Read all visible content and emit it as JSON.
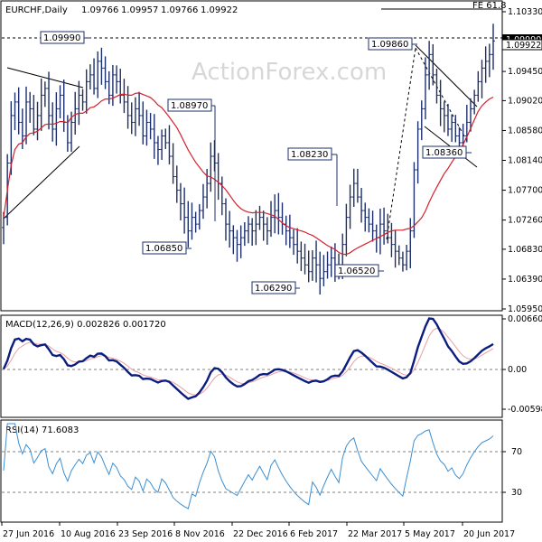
{
  "header": {
    "symbol": "EURCHF,Daily",
    "ohlc": [
      "1.09766",
      "1.09957",
      "1.09766",
      "1.09922"
    ],
    "watermark": "ActionForex.com",
    "fe_label": "FE 61.8"
  },
  "chart_data": [
    {
      "type": "candlestick",
      "title": "EURCHF,Daily",
      "ylim": [
        1.0595,
        1.1045
      ],
      "y_ticks": [
        "1.10330",
        "1.09990",
        "1.09922",
        "1.09450",
        "1.09020",
        "1.08580",
        "1.08140",
        "1.07700",
        "1.07260",
        "1.06830",
        "1.06390",
        "1.05950"
      ],
      "x_ticks": [
        "27 Jun 2016",
        "10 Aug 2016",
        "23 Sep 2016",
        "8 Nov 2016",
        "22 Dec 2016",
        "6 Feb 2017",
        "22 Mar 2017",
        "5 May 2017",
        "20 Jun 2017"
      ],
      "current_price": 1.09922,
      "annotations": [
        {
          "label": "1.09990",
          "value": 1.0999
        },
        {
          "label": "1.08970",
          "value": 1.0897
        },
        {
          "label": "1.06850",
          "value": 1.0685
        },
        {
          "label": "1.06290",
          "value": 1.0629
        },
        {
          "label": "1.08230",
          "value": 1.0823
        },
        {
          "label": "1.06520",
          "value": 1.0652
        },
        {
          "label": "1.09860",
          "value": 1.0986
        },
        {
          "label": "1.08360",
          "value": 1.0836
        }
      ],
      "closes": [
        1.073,
        1.081,
        1.088,
        1.09,
        1.087,
        1.085,
        1.09,
        1.089,
        1.086,
        1.088,
        1.091,
        1.092,
        1.088,
        1.086,
        1.089,
        1.091,
        1.087,
        1.084,
        1.087,
        1.089,
        1.091,
        1.09,
        1.093,
        1.094,
        1.092,
        1.096,
        1.095,
        1.093,
        1.091,
        1.094,
        1.093,
        1.091,
        1.09,
        1.088,
        1.087,
        1.089,
        1.088,
        1.085,
        1.087,
        1.086,
        1.084,
        1.083,
        1.085,
        1.084,
        1.082,
        1.079,
        1.077,
        1.075,
        1.073,
        1.071,
        1.073,
        1.072,
        1.074,
        1.076,
        1.078,
        1.082,
        1.081,
        1.078,
        1.075,
        1.072,
        1.071,
        1.07,
        1.069,
        1.07,
        1.071,
        1.072,
        1.071,
        1.072,
        1.073,
        1.072,
        1.071,
        1.073,
        1.074,
        1.073,
        1.072,
        1.071,
        1.07,
        1.069,
        1.068,
        1.067,
        1.066,
        1.065,
        1.067,
        1.066,
        1.064,
        1.065,
        1.066,
        1.067,
        1.066,
        1.065,
        1.069,
        1.073,
        1.076,
        1.078,
        1.076,
        1.074,
        1.073,
        1.072,
        1.071,
        1.07,
        1.072,
        1.071,
        1.07,
        1.069,
        1.068,
        1.067,
        1.066,
        1.068,
        1.071,
        1.08,
        1.086,
        1.089,
        1.094,
        1.097,
        1.094,
        1.091,
        1.089,
        1.088,
        1.086,
        1.087,
        1.085,
        1.084,
        1.085,
        1.087,
        1.089,
        1.091,
        1.093,
        1.095,
        1.096,
        1.097,
        1.099
      ]
    },
    {
      "type": "line",
      "title": "MACD(12,26,9) 0.002826 0.001720",
      "series": [
        {
          "name": "MACD"
        },
        {
          "name": "Signal"
        }
      ],
      "ylim": [
        -0.0063,
        0.0069
      ],
      "y_ticks": [
        "0.006605",
        "0.00",
        "-0.005988"
      ]
    },
    {
      "type": "line",
      "title": "RSI(14) 71.6083",
      "series": [
        {
          "name": "RSI(14)"
        }
      ],
      "ylim": [
        0,
        100
      ],
      "y_ticks": [
        "70",
        "30"
      ],
      "levels": [
        70,
        30
      ]
    }
  ],
  "colors": {
    "bars": "#1d2f6b",
    "ma": "#d6202b",
    "macd": "#0b1e80",
    "signal": "#e8a0a4",
    "rsi": "#3b8fd4",
    "grid": "#808080",
    "annotation_box": "#1d2f6b"
  }
}
